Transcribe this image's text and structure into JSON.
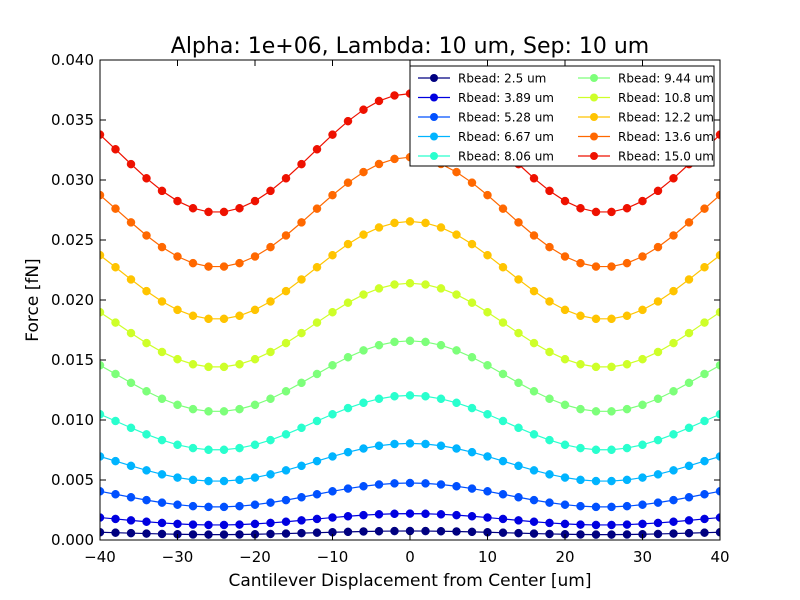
{
  "chart_data": {
    "type": "line",
    "title": "Alpha: 1e+06, Lambda: 10 um, Sep: 10 um",
    "xlabel": "Cantilever Displacement from Center [um]",
    "ylabel": "Force [fN]",
    "xlim": [
      -40,
      40
    ],
    "ylim": [
      0.0,
      0.04
    ],
    "xticks": [
      -40,
      -30,
      -20,
      -10,
      0,
      10,
      20,
      30,
      40
    ],
    "xtick_labels": [
      "−40",
      "−30",
      "−20",
      "−10",
      "0",
      "10",
      "20",
      "30",
      "40"
    ],
    "yticks": [
      0.0,
      0.005,
      0.01,
      0.015,
      0.02,
      0.025,
      0.03,
      0.035,
      0.04
    ],
    "ytick_labels": [
      "0.000",
      "0.005",
      "0.010",
      "0.015",
      "0.020",
      "0.025",
      "0.030",
      "0.035",
      "0.040"
    ],
    "grid": false,
    "legend_position": "top-right",
    "legend_columns": 2,
    "x": {
      "start": -40,
      "end": 40,
      "count": 41
    },
    "series": [
      {
        "name": "Rbead: 2.5 um",
        "color": "#000080",
        "min": 0.00045,
        "max": 0.00075
      },
      {
        "name": "Rbead: 3.89 um",
        "color": "#0000e0",
        "min": 0.00125,
        "max": 0.0022
      },
      {
        "name": "Rbead: 5.28 um",
        "color": "#0050ff",
        "min": 0.00275,
        "max": 0.00475
      },
      {
        "name": "Rbead: 6.67 um",
        "color": "#00b4ff",
        "min": 0.0049,
        "max": 0.00805
      },
      {
        "name": "Rbead: 8.06 um",
        "color": "#29ffce",
        "min": 0.0075,
        "max": 0.01205
      },
      {
        "name": "Rbead: 9.44 um",
        "color": "#7dff7a",
        "min": 0.0107,
        "max": 0.0166
      },
      {
        "name": "Rbead: 10.8 um",
        "color": "#ceff29",
        "min": 0.0144,
        "max": 0.0214
      },
      {
        "name": "Rbead: 12.2 um",
        "color": "#ffc400",
        "min": 0.0184,
        "max": 0.02655
      },
      {
        "name": "Rbead: 13.6 um",
        "color": "#ff6800",
        "min": 0.02275,
        "max": 0.0319
      },
      {
        "name": "Rbead: 15.0 um",
        "color": "#ee1100",
        "min": 0.0273,
        "max": 0.0372
      }
    ]
  }
}
